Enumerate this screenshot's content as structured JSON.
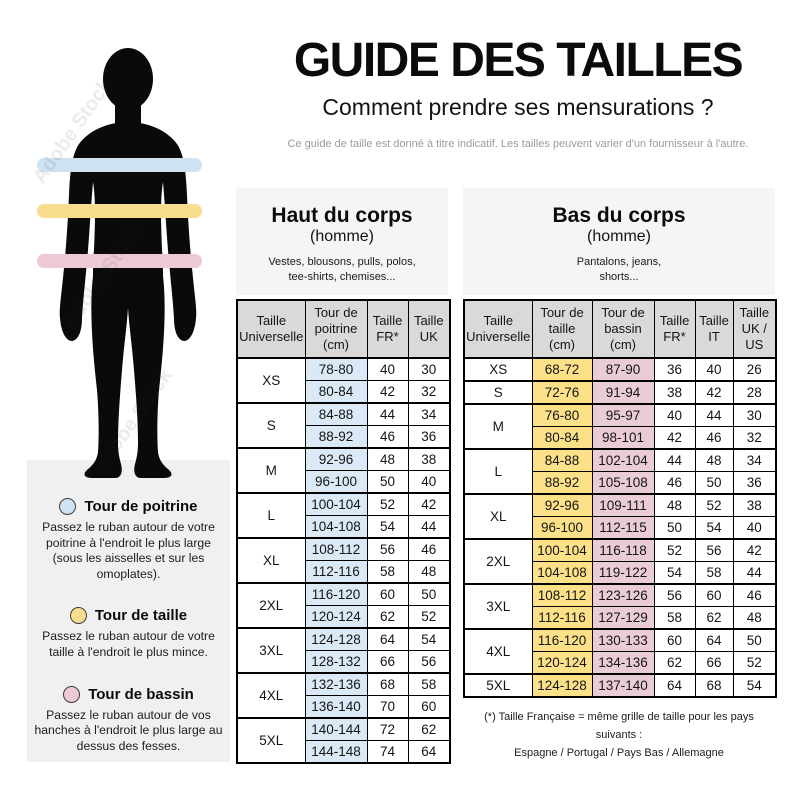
{
  "header": {
    "title": "GUIDE DES TAILLES",
    "subtitle": "Comment prendre ses mensurations ?",
    "disclaimer": "Ce guide de taille est donné à titre indicatif. Les tailles peuvent varier d'un fournisseur à l'autre."
  },
  "watermark": "Adobe Stock",
  "colors": {
    "chest": "#cfe2f1",
    "waist": "#f8dd8e",
    "hips": "#ecc9d5",
    "chest_col": "#dbe9f6",
    "waist_col": "#fce189",
    "hips_col": "#eaccd8",
    "header_cell": "#d9d9d9",
    "section_bg": "#f5f5f5",
    "legend_bg": "#f0f0f0"
  },
  "legend": {
    "items": [
      {
        "name": "chest",
        "title": "Tour de poitrine",
        "description": "Passez le ruban autour de votre poitrine à l'endroit le plus large (sous les aisselles et sur les omoplates)."
      },
      {
        "name": "waist",
        "title": "Tour de taille",
        "description": "Passez le ruban autour de votre taille à l'endroit le plus mince."
      },
      {
        "name": "hips",
        "title": "Tour de bassin",
        "description": "Passez le ruban autour de vos hanches à l'endroit le plus large au dessus des fesses."
      }
    ]
  },
  "upper_table": {
    "section_title": "Haut du corps",
    "section_subtitle": "(homme)",
    "section_items": "Vestes, blousons, pulls, polos,\ntee-shirts, chemises...",
    "columns": [
      "Taille\nUniverselle",
      "Tour de\npoitrine\n(cm)",
      "Taille\nFR*",
      "Taille\nUK"
    ],
    "column_tints": [
      "chest",
      "",
      ""
    ],
    "groups": [
      {
        "size": "XS",
        "rows": [
          [
            "78-80",
            "40",
            "30"
          ],
          [
            "80-84",
            "42",
            "32"
          ]
        ]
      },
      {
        "size": "S",
        "rows": [
          [
            "84-88",
            "44",
            "34"
          ],
          [
            "88-92",
            "46",
            "36"
          ]
        ]
      },
      {
        "size": "M",
        "rows": [
          [
            "92-96",
            "48",
            "38"
          ],
          [
            "96-100",
            "50",
            "40"
          ]
        ]
      },
      {
        "size": "L",
        "rows": [
          [
            "100-104",
            "52",
            "42"
          ],
          [
            "104-108",
            "54",
            "44"
          ]
        ]
      },
      {
        "size": "XL",
        "rows": [
          [
            "108-112",
            "56",
            "46"
          ],
          [
            "112-116",
            "58",
            "48"
          ]
        ]
      },
      {
        "size": "2XL",
        "rows": [
          [
            "116-120",
            "60",
            "50"
          ],
          [
            "120-124",
            "62",
            "52"
          ]
        ]
      },
      {
        "size": "3XL",
        "rows": [
          [
            "124-128",
            "64",
            "54"
          ],
          [
            "128-132",
            "66",
            "56"
          ]
        ]
      },
      {
        "size": "4XL",
        "rows": [
          [
            "132-136",
            "68",
            "58"
          ],
          [
            "136-140",
            "70",
            "60"
          ]
        ]
      },
      {
        "size": "5XL",
        "rows": [
          [
            "140-144",
            "72",
            "62"
          ],
          [
            "144-148",
            "74",
            "64"
          ]
        ]
      }
    ]
  },
  "lower_table": {
    "section_title": "Bas du corps",
    "section_subtitle": "(homme)",
    "section_items": "Pantalons, jeans,\nshorts...",
    "columns": [
      "Taille\nUniverselle",
      "Tour de\ntaille\n(cm)",
      "Tour de\nbassin\n(cm)",
      "Taille\nFR*",
      "Taille\nIT",
      "Taille\nUK /\nUS"
    ],
    "column_tints": [
      "waist",
      "hips",
      "",
      "",
      ""
    ],
    "groups": [
      {
        "size": "XS",
        "rows": [
          [
            "68-72",
            "87-90",
            "36",
            "40",
            "26"
          ]
        ]
      },
      {
        "size": "S",
        "rows": [
          [
            "72-76",
            "91-94",
            "38",
            "42",
            "28"
          ]
        ]
      },
      {
        "size": "M",
        "rows": [
          [
            "76-80",
            "95-97",
            "40",
            "44",
            "30"
          ],
          [
            "80-84",
            "98-101",
            "42",
            "46",
            "32"
          ]
        ]
      },
      {
        "size": "L",
        "rows": [
          [
            "84-88",
            "102-104",
            "44",
            "48",
            "34"
          ],
          [
            "88-92",
            "105-108",
            "46",
            "50",
            "36"
          ]
        ]
      },
      {
        "size": "XL",
        "rows": [
          [
            "92-96",
            "109-111",
            "48",
            "52",
            "38"
          ],
          [
            "96-100",
            "112-115",
            "50",
            "54",
            "40"
          ]
        ]
      },
      {
        "size": "2XL",
        "rows": [
          [
            "100-104",
            "116-118",
            "52",
            "56",
            "42"
          ],
          [
            "104-108",
            "119-122",
            "54",
            "58",
            "44"
          ]
        ]
      },
      {
        "size": "3XL",
        "rows": [
          [
            "108-112",
            "123-126",
            "56",
            "60",
            "46"
          ],
          [
            "112-116",
            "127-129",
            "58",
            "62",
            "48"
          ]
        ]
      },
      {
        "size": "4XL",
        "rows": [
          [
            "116-120",
            "130-133",
            "60",
            "64",
            "50"
          ],
          [
            "120-124",
            "134-136",
            "62",
            "66",
            "52"
          ]
        ]
      },
      {
        "size": "5XL",
        "rows": [
          [
            "124-128",
            "137-140",
            "64",
            "68",
            "54"
          ]
        ]
      }
    ],
    "footnote_line1": "(*) Taille Française = même grille de taille pour les pays suivants :",
    "footnote_line2": "Espagne / Portugal / Pays Bas / Allemagne"
  }
}
